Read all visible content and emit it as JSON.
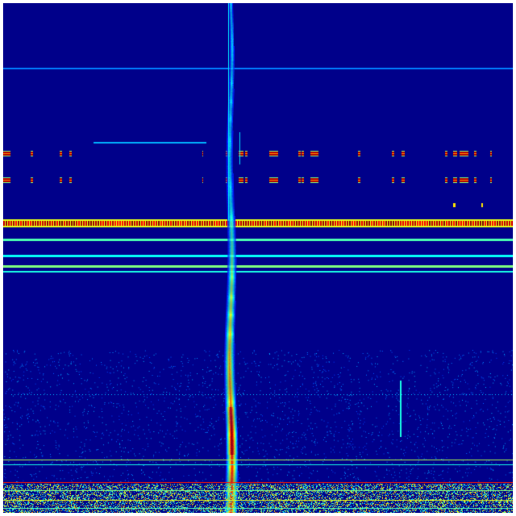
{
  "spectrogram": {
    "colormap": "jet",
    "colors": {
      "background": "#00008a",
      "faint_line": "#0040ff",
      "cyan_line": "#00e0ff",
      "band_red": "#e01000",
      "band_yellow": "#ffe000"
    }
  }
}
